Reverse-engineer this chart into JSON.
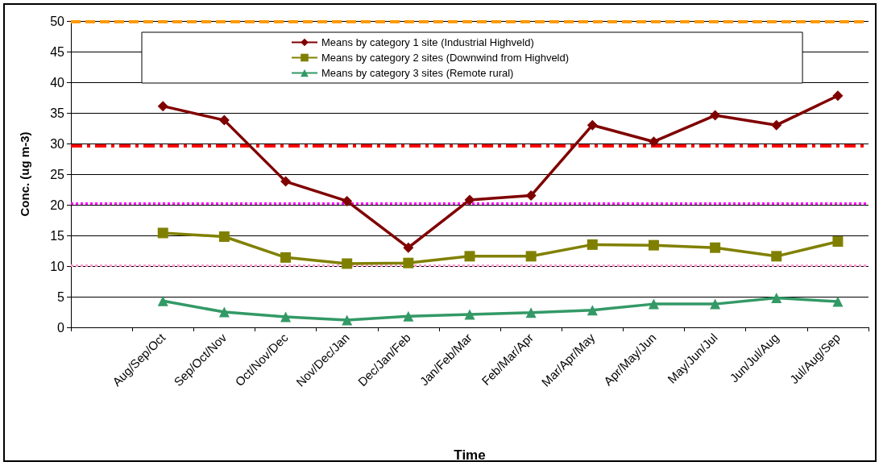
{
  "chart_data": {
    "type": "line",
    "xlabel": "Time",
    "ylabel": "Conc. (ug m-3)",
    "categories": [
      null,
      "Aug/Sep/Oct",
      "Sep/Oct/Nov",
      "Oct/Nov/Dec",
      "Nov/Dec/Jan",
      "Dec/Jan/Feb",
      "Jan/Feb/Mar",
      "Feb/Mar/Apr",
      "Mar/Apr/May",
      "Apr/May/Jun",
      "May/Jun/Jul",
      "Jun/Jul/Aug",
      "Jul/Aug/Sep"
    ],
    "series": [
      {
        "name": "Means by category 1 site (Industrial Highveld)",
        "color": "#800000",
        "marker": "diamond",
        "values": [
          null,
          36.1,
          33.8,
          23.8,
          20.6,
          13.0,
          20.8,
          21.5,
          33.0,
          30.3,
          34.6,
          33.0,
          37.8
        ]
      },
      {
        "name": "Means by category 2 sites (Downwind from Highveld)",
        "color": "#808000",
        "marker": "square",
        "values": [
          null,
          15.4,
          14.8,
          11.4,
          10.4,
          10.5,
          11.6,
          11.6,
          13.5,
          13.4,
          13.0,
          11.6,
          14.0
        ]
      },
      {
        "name": "Means by category 3 sites (Remote rural)",
        "color": "#339966",
        "marker": "triangle",
        "values": [
          null,
          4.3,
          2.5,
          1.7,
          1.2,
          1.8,
          2.1,
          2.4,
          2.8,
          3.8,
          3.8,
          4.8,
          4.2
        ]
      }
    ],
    "ylim": [
      0,
      50
    ],
    "yticks": [
      0,
      5,
      10,
      15,
      20,
      25,
      30,
      35,
      40,
      45,
      50
    ],
    "grid": "y",
    "legend": "top",
    "ref_lines": [
      {
        "axis": "y",
        "value": 49.9,
        "color": "#ff9900",
        "line_style": "dashed"
      },
      {
        "axis": "y",
        "value": 29.6,
        "color": "#ff0000",
        "line_style": "dashdot"
      },
      {
        "axis": "y",
        "value": 20.2,
        "color": "#ff00ff",
        "line_style": "dotted"
      },
      {
        "axis": "y",
        "value": 10.1,
        "color": "#ff99cc",
        "line_style": "dotted"
      }
    ]
  }
}
